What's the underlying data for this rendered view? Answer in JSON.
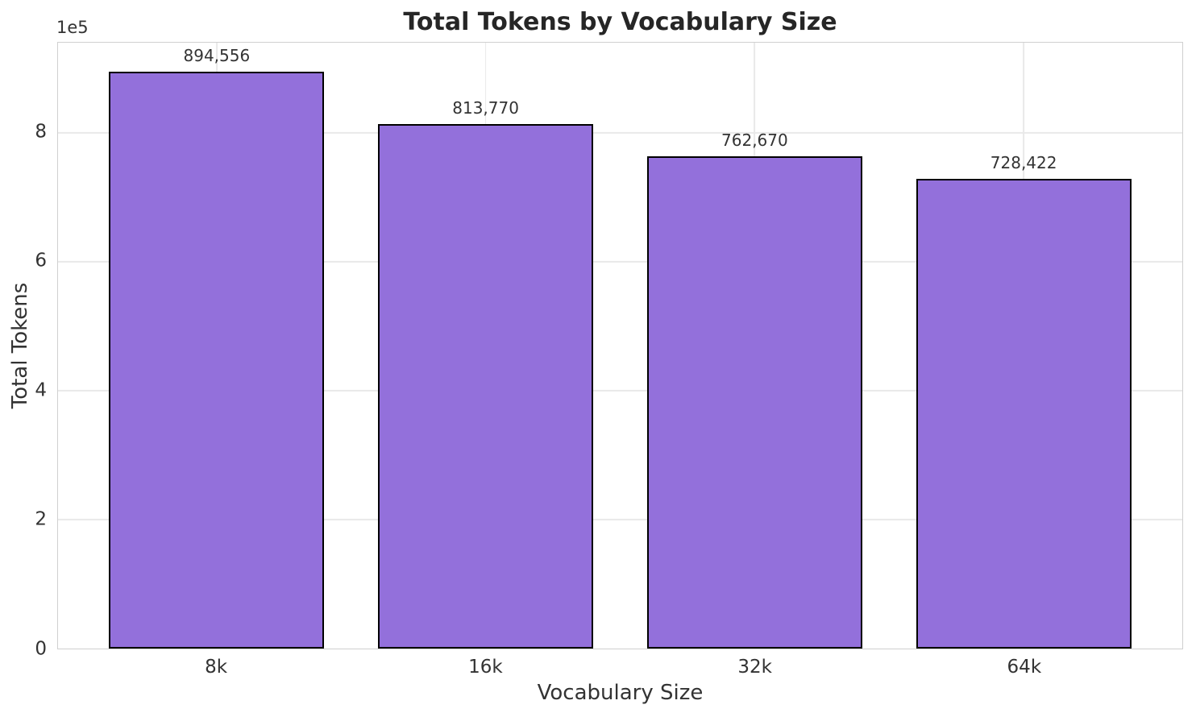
{
  "chart_data": {
    "type": "bar",
    "title": "Total Tokens by Vocabulary Size",
    "xlabel": "Vocabulary Size",
    "ylabel": "Total Tokens",
    "categories": [
      "8k",
      "16k",
      "32k",
      "64k"
    ],
    "values": [
      894556,
      813770,
      762670,
      728422
    ],
    "value_labels": [
      "894,556",
      "813,770",
      "762,670",
      "728,422"
    ],
    "ylim": [
      0,
      939284
    ],
    "yticks": [
      0,
      2,
      4,
      6,
      8
    ],
    "ytick_multiplier": 100000,
    "y_offset_label": "1e5",
    "grid": true,
    "legend": "none",
    "bar_color": "#9370DB",
    "bar_edge_color": "#000000",
    "grid_color": "#e9e9e9",
    "spine_color": "#d0d0d0",
    "title_color": "#262626",
    "text_color": "#333333",
    "bar_width_fraction": 0.8,
    "plot_side_margin_fraction": 0.0215
  }
}
